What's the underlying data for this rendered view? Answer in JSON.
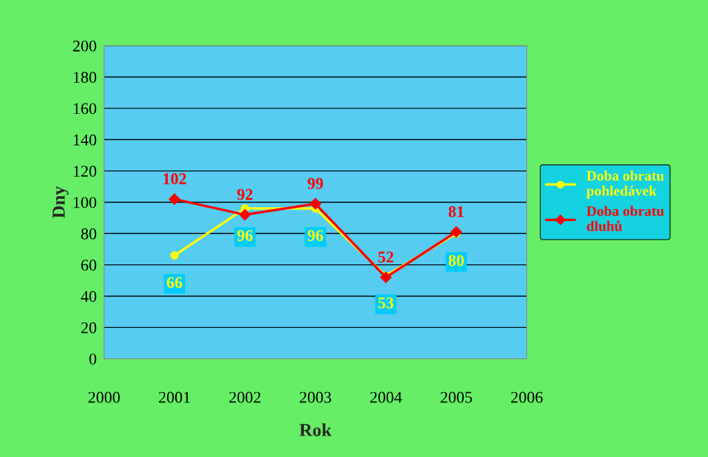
{
  "chart_data": {
    "type": "line",
    "xlabel": "Rok",
    "ylabel": "Dny",
    "x": [
      2001,
      2002,
      2003,
      2004,
      2005
    ],
    "series": [
      {
        "name": "Doba obratu pohledávek",
        "color": "#ffff00",
        "values": [
          66,
          96,
          96,
          53,
          80
        ],
        "marker": "circle"
      },
      {
        "name": "Doba obratu dluhů",
        "color": "#ff0000",
        "values": [
          102,
          92,
          99,
          52,
          81
        ],
        "marker": "diamond"
      }
    ],
    "xlim": [
      2000,
      2006
    ],
    "xticks": [
      2000,
      2001,
      2002,
      2003,
      2004,
      2005,
      2006
    ],
    "ylim": [
      0,
      200
    ],
    "yticks": [
      0,
      20,
      40,
      60,
      80,
      100,
      120,
      140,
      160,
      180,
      200
    ],
    "grid": "y",
    "legend": "right",
    "data_labels": true
  }
}
